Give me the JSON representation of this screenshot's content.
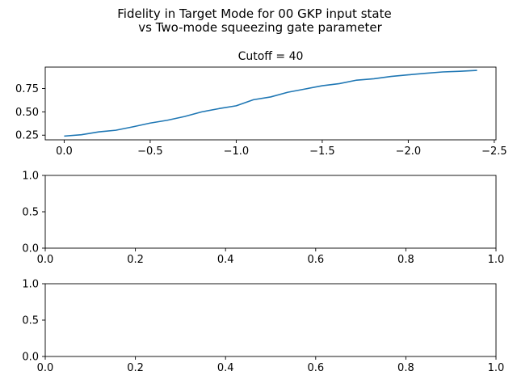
{
  "figure": {
    "suptitle_line1": "Fidelity in Target Mode for 00 GKP input state",
    "suptitle_line2": "vs Two-mode squeezing gate parameter"
  },
  "chart_data": [
    {
      "type": "line",
      "title": "Cutoff = 40",
      "xlabel": "",
      "ylabel": "",
      "xlim": [
        0.11,
        -2.51
      ],
      "ylim": [
        0.2,
        0.98
      ],
      "xticks": [
        0.0,
        -0.5,
        -1.0,
        -1.5,
        -2.0,
        -2.5
      ],
      "xtick_labels": [
        "0.0",
        "−0.5",
        "−1.0",
        "−1.5",
        "−2.0",
        "−2.5"
      ],
      "yticks": [
        0.25,
        0.5,
        0.75
      ],
      "ytick_labels": [
        "0.25",
        "0.50",
        "0.75"
      ],
      "grid": false,
      "line_color": "#1f77b4",
      "series": [
        {
          "x": [
            0.0,
            -0.1,
            -0.2,
            -0.3,
            -0.4,
            -0.5,
            -0.6,
            -0.7,
            -0.8,
            -0.9,
            -1.0,
            -1.1,
            -1.2,
            -1.3,
            -1.4,
            -1.5,
            -1.6,
            -1.7,
            -1.8,
            -1.9,
            -2.0,
            -2.1,
            -2.2,
            -2.3,
            -2.4
          ],
          "values": [
            0.24,
            0.255,
            0.285,
            0.303,
            0.34,
            0.38,
            0.41,
            0.45,
            0.5,
            0.535,
            0.565,
            0.63,
            0.66,
            0.71,
            0.745,
            0.78,
            0.803,
            0.84,
            0.855,
            0.88,
            0.897,
            0.913,
            0.928,
            0.935,
            0.945
          ]
        }
      ]
    },
    {
      "type": "line",
      "title": "",
      "xlabel": "",
      "ylabel": "",
      "xlim": [
        0.0,
        1.0
      ],
      "ylim": [
        0.0,
        1.0
      ],
      "xticks": [
        0.0,
        0.2,
        0.4,
        0.6,
        0.8,
        1.0
      ],
      "xtick_labels": [
        "0.0",
        "0.2",
        "0.4",
        "0.6",
        "0.8",
        "1.0"
      ],
      "yticks": [
        0.0,
        0.5,
        1.0
      ],
      "ytick_labels": [
        "0.0",
        "0.5",
        "1.0"
      ],
      "grid": false,
      "series": []
    },
    {
      "type": "line",
      "title": "",
      "xlabel": "",
      "ylabel": "",
      "xlim": [
        0.0,
        1.0
      ],
      "ylim": [
        0.0,
        1.0
      ],
      "xticks": [
        0.0,
        0.2,
        0.4,
        0.6,
        0.8,
        1.0
      ],
      "xtick_labels": [
        "0.0",
        "0.2",
        "0.4",
        "0.6",
        "0.8",
        "1.0"
      ],
      "yticks": [
        0.0,
        0.5,
        1.0
      ],
      "ytick_labels": [
        "0.0",
        "0.5",
        "1.0"
      ],
      "grid": false,
      "series": []
    }
  ]
}
